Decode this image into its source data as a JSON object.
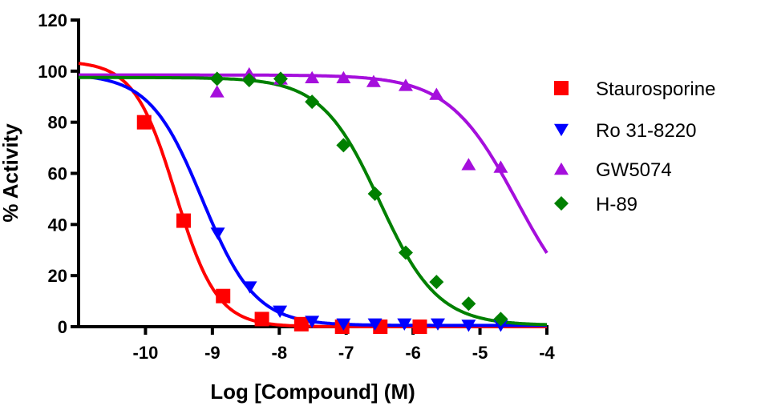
{
  "chart_data": {
    "type": "scatter",
    "title": "",
    "xlabel": "Log [Compound] (M)",
    "ylabel": "% Activity",
    "xlim": [
      -11,
      -4
    ],
    "ylim": [
      0,
      120
    ],
    "xticks": [
      -10,
      -9,
      -8,
      -7,
      -6,
      -5,
      -4
    ],
    "yticks": [
      0,
      20,
      40,
      60,
      80,
      100,
      120
    ],
    "xtick_labels": [
      "-10",
      "-9",
      "-8",
      "-7",
      "-6",
      "-5",
      "-4"
    ],
    "ytick_labels": [
      "0",
      "20",
      "40",
      "60",
      "80",
      "100",
      "120"
    ],
    "grid": false,
    "legend_position": "right",
    "series": [
      {
        "name": "Staurosporine",
        "color": "#ff0000",
        "marker": "square",
        "x": [
          -10.02,
          -9.43,
          -8.84,
          -8.26,
          -7.67,
          -7.06,
          -6.49,
          -5.9
        ],
        "y": [
          80,
          41.5,
          12,
          3,
          1,
          0,
          0,
          0
        ],
        "fit": {
          "top": 104,
          "bottom": 0,
          "logIC50": -9.55,
          "hill": 1.4
        }
      },
      {
        "name": "Ro 31-8220",
        "color": "#0000ff",
        "marker": "triangle-down",
        "x": [
          -8.92,
          -8.44,
          -7.99,
          -7.51,
          -7.04,
          -6.57,
          -6.13,
          -5.63,
          -5.17,
          -4.69
        ],
        "y": [
          36.5,
          15.5,
          6,
          2,
          1,
          1,
          1,
          1,
          0.5,
          0.5
        ],
        "fit": {
          "top": 99,
          "bottom": 0.5,
          "logIC50": -9.15,
          "hill": 1.1
        }
      },
      {
        "name": "GW5074",
        "color": "#a50fdc",
        "marker": "triangle-up",
        "x": [
          -8.93,
          -8.45,
          -7.98,
          -7.51,
          -7.04,
          -6.59,
          -6.11,
          -5.65,
          -5.17,
          -4.69
        ],
        "y": [
          92,
          99,
          97,
          97.5,
          97.5,
          96,
          94.5,
          91,
          63.5,
          62.5
        ],
        "fit": {
          "top": 98.5,
          "bottom": 0,
          "logIC50": -4.45,
          "hill": 0.85
        }
      },
      {
        "name": "H-89",
        "color": "#008000",
        "marker": "diamond",
        "x": [
          -8.93,
          -8.45,
          -7.98,
          -7.51,
          -7.04,
          -6.57,
          -6.11,
          -5.65,
          -5.17,
          -4.69
        ],
        "y": [
          97,
          96.5,
          97,
          88,
          71,
          52,
          29,
          17.5,
          9,
          3
        ],
        "fit": {
          "top": 97.5,
          "bottom": 0.5,
          "logIC50": -6.5,
          "hill": 1.0
        }
      }
    ]
  }
}
